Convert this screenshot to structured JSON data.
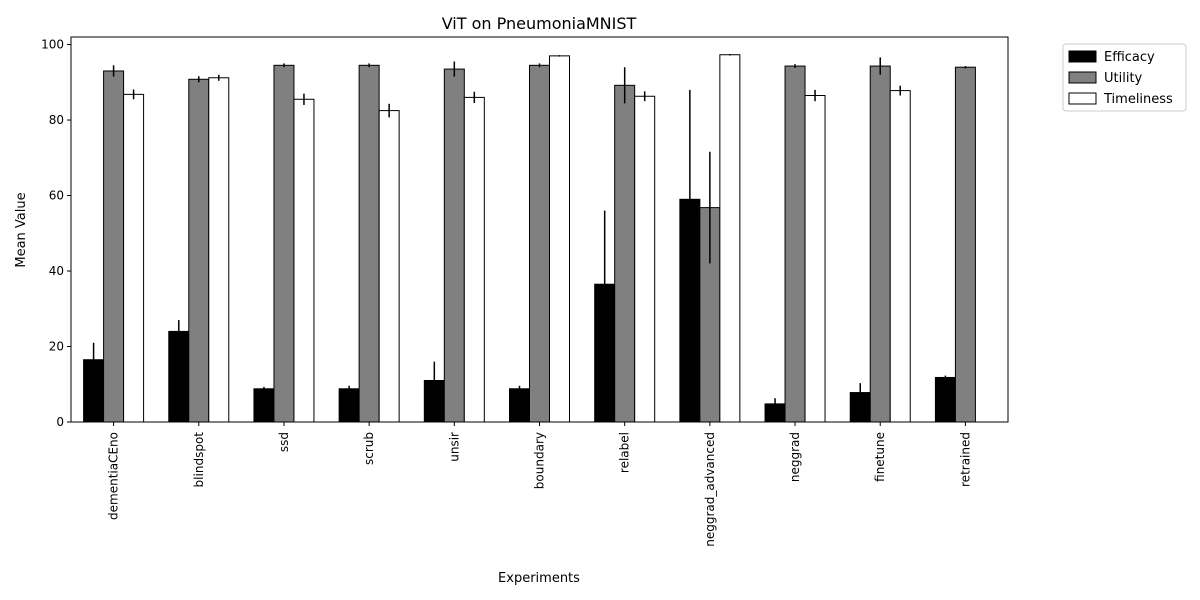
{
  "chart_data": {
    "type": "bar",
    "title": "ViT on PneumoniaMNIST",
    "xlabel": "Experiments",
    "ylabel": "Mean Value",
    "ylim": [
      0,
      102
    ],
    "yticks": [
      0,
      20,
      40,
      60,
      80,
      100
    ],
    "grid": false,
    "legend_position": "outside-top-right",
    "categories": [
      "dementiaCEno",
      "blindspot",
      "ssd",
      "scrub",
      "unsir",
      "boundary",
      "relabel",
      "neggrad_advanced",
      "neggrad",
      "finetune",
      "retrained"
    ],
    "series": [
      {
        "name": "Efficacy",
        "color": "#000000",
        "values": [
          16.5,
          24.0,
          8.8,
          8.8,
          11.0,
          8.8,
          36.5,
          59.0,
          4.8,
          7.8,
          11.8
        ],
        "errors": [
          4.5,
          3.0,
          0.5,
          0.8,
          5.0,
          0.8,
          19.5,
          29.0,
          1.5,
          2.5,
          0.5
        ]
      },
      {
        "name": "Utility",
        "color": "#808080",
        "values": [
          93.0,
          90.8,
          94.5,
          94.5,
          93.5,
          94.5,
          89.2,
          56.8,
          94.3,
          94.3,
          94.0
        ],
        "errors": [
          1.5,
          0.8,
          0.5,
          0.5,
          2.0,
          0.5,
          4.8,
          14.8,
          0.5,
          2.3,
          0.3
        ]
      },
      {
        "name": "Timeliness",
        "color": "#ffffff",
        "values": [
          86.8,
          91.2,
          85.5,
          82.5,
          86.0,
          97.0,
          86.3,
          97.3,
          86.5,
          87.8,
          0
        ],
        "errors": [
          1.3,
          0.8,
          1.5,
          1.8,
          1.5,
          0.2,
          1.3,
          0.2,
          1.5,
          1.3,
          0
        ]
      }
    ]
  }
}
